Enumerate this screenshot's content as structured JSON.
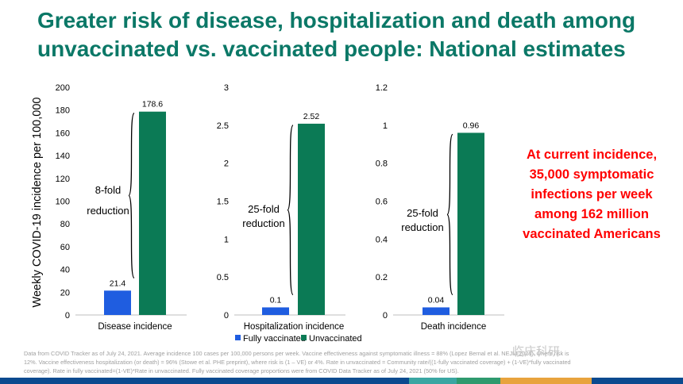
{
  "title": {
    "line1": "Greater risk of disease, hospitalization and death among",
    "line2": "unvaccinated vs. vaccinated people: National estimates"
  },
  "y_axis_label": "Weekly COVID-19 incidence per 100,000",
  "legend": {
    "fully_vaccinated": "Fully vaccinated",
    "unvaccinated": "Unvaccinated"
  },
  "callout": {
    "lines": [
      "At current incidence,",
      "35,000 symptomatic",
      "infections per week",
      "among 162 million",
      "vaccinated Americans"
    ]
  },
  "footnote": {
    "line1": "Data from COVID Tracker as of July 24, 2021. Average incidence 100 cases per 100,000 persons per week. Vaccine effectiveness against symptomatic illness = 88% (Lopez Bernal et al. NEJM 2021), where risk is",
    "line2": "12%. Vaccine effectiveness hospitalization (or death) = 96% (Stowe et al. PHE preprint), where risk is (1 – VE) or 4%. Rate in unvaccinated = Community rate/((1-fully vaccinated coverage) + (1-VE)*fully vaccinated",
    "line3": "coverage). Rate in fully vaccinated=(1-VE)*Rate in unvaccinated. Fully vaccinated coverage proportions were from COVID Data Tracker as of July 24, 2021 (50% for US)."
  },
  "watermark": "临床科研",
  "colors": {
    "title": "#0b7867",
    "fully_vaccinated": "#1f5de0",
    "unvaccinated": "#0b7a55",
    "callout": "#ff0000",
    "bottom_bar": [
      "#0b4a8f",
      "#0b4a8f",
      "#3aa6a2",
      "#2e9a6e",
      "#e8a33d",
      "#e8a33d",
      "#0b4a8f"
    ]
  },
  "chart_data": [
    {
      "type": "bar",
      "categories": [
        "Disease incidence"
      ],
      "series": [
        {
          "name": "Fully vaccinated",
          "values": [
            21.4
          ]
        },
        {
          "name": "Unvaccinated",
          "values": [
            178.6
          ]
        }
      ],
      "value_labels": [
        "21.4",
        "178.6"
      ],
      "ylim": [
        0,
        200
      ],
      "yticks": [
        0,
        20,
        40,
        60,
        80,
        100,
        120,
        140,
        160,
        180,
        200
      ],
      "ytick_labels": [
        "0",
        "20",
        "40",
        "60",
        "80",
        "100",
        "120",
        "140",
        "160",
        "180",
        "200"
      ],
      "annotation": [
        "8-fold",
        "reduction"
      ]
    },
    {
      "type": "bar",
      "categories": [
        "Hospitalization incidence"
      ],
      "series": [
        {
          "name": "Fully vaccinated",
          "values": [
            0.1
          ]
        },
        {
          "name": "Unvaccinated",
          "values": [
            2.52
          ]
        }
      ],
      "value_labels": [
        "0.1",
        "2.52"
      ],
      "ylim": [
        0,
        3
      ],
      "yticks": [
        0,
        0.5,
        1,
        1.5,
        2,
        2.5,
        3
      ],
      "ytick_labels": [
        "0",
        "0.5",
        "1",
        "1.5",
        "2",
        "2.5",
        "3"
      ],
      "annotation": [
        "25-fold",
        "reduction"
      ]
    },
    {
      "type": "bar",
      "categories": [
        "Death incidence"
      ],
      "series": [
        {
          "name": "Fully vaccinated",
          "values": [
            0.04
          ]
        },
        {
          "name": "Unvaccinated",
          "values": [
            0.96
          ]
        }
      ],
      "value_labels": [
        "0.04",
        "0.96"
      ],
      "ylim": [
        0,
        1.2
      ],
      "yticks": [
        0,
        0.2,
        0.4,
        0.6,
        0.8,
        1,
        1.2
      ],
      "ytick_labels": [
        "0",
        "0.2",
        "0.4",
        "0.6",
        "0.8",
        "1",
        "1.2"
      ],
      "annotation": [
        "25-fold",
        "reduction"
      ]
    }
  ]
}
